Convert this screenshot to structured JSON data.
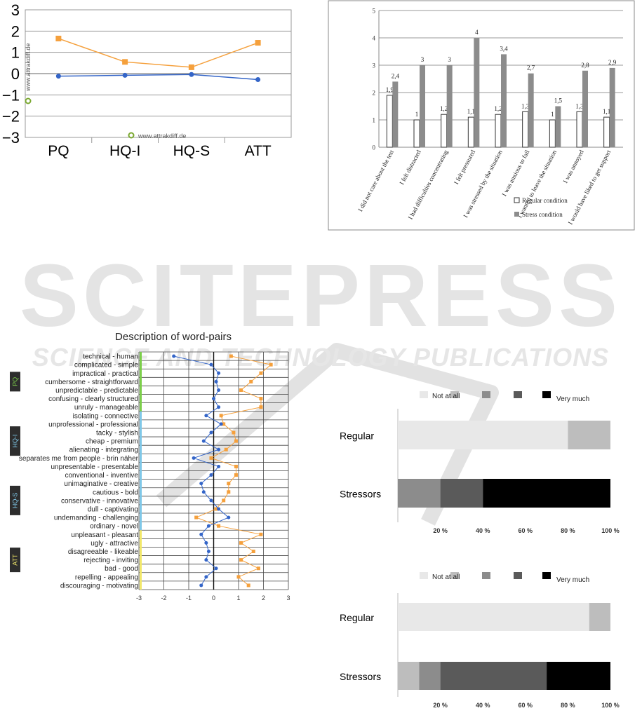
{
  "watermark": {
    "main": "SCITEPRESS",
    "sub": "SCIENCE AND TECHNOLOGY PUBLICATIONS"
  },
  "chart_data": [
    {
      "id": "attrakdiff-overview",
      "type": "line",
      "categories": [
        "PQ",
        "HQ-I",
        "HQ-S",
        "ATT"
      ],
      "series": [
        {
          "color": "#f5a03c",
          "values": [
            1.65,
            0.55,
            0.3,
            1.45
          ]
        },
        {
          "color": "#3465c8",
          "values": [
            -0.12,
            -0.08,
            -0.04,
            -0.28
          ]
        }
      ],
      "ylim": [
        -3,
        3
      ],
      "yticks": [
        3,
        2,
        1,
        0,
        -1,
        -2,
        -3
      ],
      "grid": true,
      "source_label": "www.attrakdiff.de"
    },
    {
      "id": "questionnaire-bars",
      "type": "bar",
      "categories": [
        "I did not care about the test",
        "I felt distracted",
        "I had difficulties concentrating",
        "I felt pressured",
        "I was stressed by the situation",
        "I was anxious to fail",
        "I wanted to leave the situation",
        "I was annoyed",
        "I would have liked to get support"
      ],
      "series": [
        {
          "name": "Regular condition",
          "color": "#ffffff",
          "values": [
            1.9,
            1,
            1.2,
            1.1,
            1.2,
            1.3,
            1,
            1.3,
            1.1
          ]
        },
        {
          "name": "Stress condition",
          "color": "#8c8c8c",
          "values": [
            2.4,
            3,
            3,
            4,
            3.4,
            2.7,
            1.5,
            2.8,
            2.9
          ]
        }
      ],
      "data_labels": [
        [
          "1,9",
          "1",
          "1,2",
          "1,1",
          "1,2",
          "1,3",
          "1",
          "1,3",
          "1,1"
        ],
        [
          "2,4",
          "3",
          "3",
          "4",
          "3,4",
          "2,7",
          "1,5",
          "2,8",
          "2,9"
        ]
      ],
      "ylim": [
        0,
        5
      ],
      "yticks": [
        "0",
        "1",
        "2",
        "3",
        "4",
        "5"
      ],
      "legend": "bottom-right"
    },
    {
      "id": "word-pairs",
      "type": "line",
      "title": "Description of word-pairs",
      "categories": [
        "technical - human",
        "complicated - simple",
        "impractical - practical",
        "cumbersome - straightforward",
        "unpredictable - predictable",
        "confusing - clearly structured",
        "unruly - manageable",
        "isolating - connective",
        "unprofessional - professional",
        "tacky - stylish",
        "cheap - premium",
        "alienating - integrating",
        "separates me from people - brin näher",
        "unpresentable - presentable",
        "conventional - inventive",
        "unimaginative - creative",
        "cautious - bold",
        "conservative - innovative",
        "dull - captivating",
        "undemanding - challenging",
        "ordinary - novel",
        "unpleasant - pleasant",
        "ugly - attractive",
        "disagreeable - likeable",
        "rejecting - inviting",
        "bad - good",
        "repelling - appealing",
        "discouraging - motivating"
      ],
      "groups": [
        {
          "name": "PQ",
          "color": "#7ccf4a",
          "count": 7
        },
        {
          "name": "HQ-I",
          "color": "#7fc8e8",
          "count": 7
        },
        {
          "name": "HQ-S",
          "color": "#7fc8e8",
          "count": 7
        },
        {
          "name": "ATT",
          "color": "#f2e86a",
          "count": 7
        }
      ],
      "series": [
        {
          "color": "#f5a03c",
          "values": [
            0.7,
            2.3,
            1.9,
            1.5,
            1.1,
            1.9,
            1.9,
            0.3,
            0.4,
            0.8,
            0.9,
            0.5,
            -0.1,
            0.9,
            0.9,
            0.6,
            0.6,
            0.4,
            0.1,
            -0.7,
            0.2,
            1.9,
            1.1,
            1.6,
            1.1,
            1.8,
            1.0,
            1.4
          ]
        },
        {
          "color": "#3465c8",
          "values": [
            -1.6,
            -0.1,
            0.2,
            0.1,
            0.2,
            0.0,
            0.2,
            -0.3,
            0.3,
            -0.1,
            -0.4,
            0.2,
            -0.8,
            0.2,
            -0.1,
            -0.5,
            -0.4,
            -0.1,
            0.2,
            0.6,
            -0.2,
            -0.5,
            -0.3,
            -0.2,
            -0.3,
            0.1,
            -0.3,
            -0.5
          ]
        }
      ],
      "xlim": [
        -3,
        3
      ],
      "xticks": [
        "-3",
        "-2",
        "-1",
        "0",
        "1",
        "2",
        "3"
      ]
    },
    {
      "id": "stacked-1",
      "type": "bar",
      "orientation": "horizontal-stacked",
      "legend_labels": [
        "Not at all",
        "Very much"
      ],
      "legend_colors": [
        "#e8e8e8",
        "#bdbdbd",
        "#8c8c8c",
        "#5a5a5a",
        "#000000"
      ],
      "categories": [
        "Regular",
        "Stressors"
      ],
      "series": [
        {
          "color": "#e8e8e8",
          "values": [
            80,
            0
          ]
        },
        {
          "color": "#bdbdbd",
          "values": [
            20,
            0
          ]
        },
        {
          "color": "#8c8c8c",
          "values": [
            0,
            20
          ]
        },
        {
          "color": "#5a5a5a",
          "values": [
            0,
            20
          ]
        },
        {
          "color": "#000000",
          "values": [
            0,
            60
          ]
        }
      ],
      "xticks": [
        "20 %",
        "40 %",
        "60 %",
        "80 %",
        "100 %"
      ],
      "xlim": [
        0,
        100
      ]
    },
    {
      "id": "stacked-2",
      "type": "bar",
      "orientation": "horizontal-stacked",
      "legend_labels": [
        "Not at all",
        "Very much"
      ],
      "legend_colors": [
        "#e8e8e8",
        "#bdbdbd",
        "#8c8c8c",
        "#5a5a5a",
        "#000000"
      ],
      "categories": [
        "Regular",
        "Stressors"
      ],
      "series": [
        {
          "color": "#e8e8e8",
          "values": [
            90,
            0
          ]
        },
        {
          "color": "#bdbdbd",
          "values": [
            10,
            10
          ]
        },
        {
          "color": "#8c8c8c",
          "values": [
            0,
            10
          ]
        },
        {
          "color": "#5a5a5a",
          "values": [
            0,
            50
          ]
        },
        {
          "color": "#000000",
          "values": [
            0,
            30
          ]
        }
      ],
      "xticks": [
        "20 %",
        "40 %",
        "60 %",
        "80 %",
        "100 %"
      ],
      "xlim": [
        0,
        100
      ]
    }
  ]
}
